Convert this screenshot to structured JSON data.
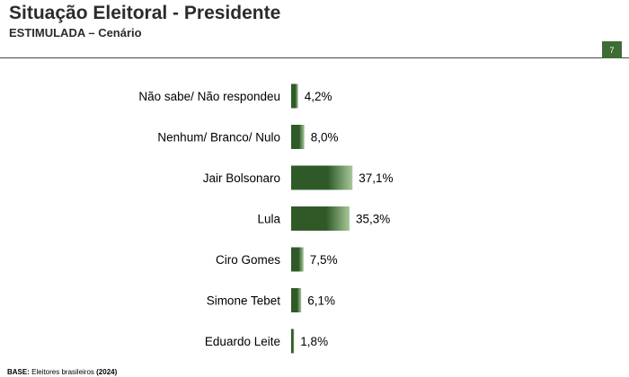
{
  "header": {
    "title": "Situação Eleitoral - Presidente",
    "subtitle": "ESTIMULADA – Cenário",
    "page_number": "7"
  },
  "footer": {
    "base_label": "BASE:",
    "base_text": " Eleitores brasileiros ",
    "base_year": "(2024)"
  },
  "chart_data": {
    "type": "bar",
    "orientation": "horizontal",
    "categories": [
      "Não sabe/ Não respondeu",
      "Nenhum/ Branco/ Nulo",
      "Jair Bolsonaro",
      "Lula",
      "Ciro Gomes",
      "Simone Tebet",
      "Eduardo Leite"
    ],
    "values": [
      4.2,
      8.0,
      37.1,
      35.3,
      7.5,
      6.1,
      1.8
    ],
    "value_labels": [
      "4,2%",
      "8,0%",
      "37,1%",
      "35,3%",
      "7,5%",
      "6,1%",
      "1,8%"
    ],
    "colors": {
      "bar_dark": "#2f5a28",
      "bar_light": "#a8c79a"
    }
  }
}
